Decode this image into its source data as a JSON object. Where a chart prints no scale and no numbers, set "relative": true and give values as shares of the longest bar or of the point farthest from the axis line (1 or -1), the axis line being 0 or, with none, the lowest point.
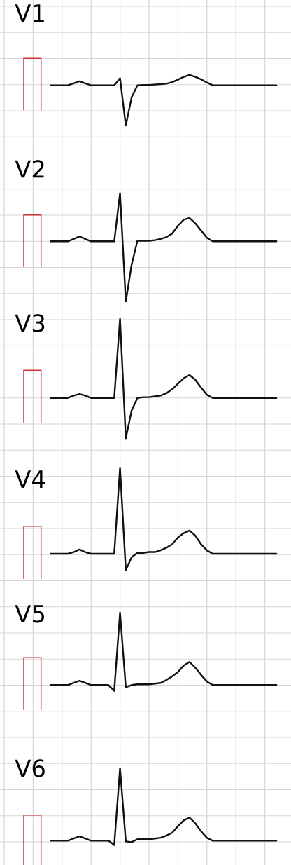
{
  "chart_data": [
    {
      "type": "line",
      "title": "V1",
      "relative": true,
      "grid": true,
      "color": "#111111",
      "categories": [
        null,
        null,
        null,
        null,
        null,
        null,
        null,
        null,
        null,
        null,
        null,
        null,
        null,
        null,
        null,
        null,
        null,
        null,
        null,
        null,
        null,
        null,
        null,
        null,
        null,
        null,
        null,
        null,
        null,
        null,
        null,
        null,
        null,
        null,
        null,
        null,
        null,
        null,
        null,
        null
      ],
      "values": [
        0,
        0,
        0,
        0,
        0.05,
        0.1,
        0.05,
        0,
        0,
        0,
        0,
        0,
        0.18,
        -1,
        -0.3,
        0,
        0.01,
        0.01,
        0.02,
        0.03,
        0.04,
        0.08,
        0.14,
        0.21,
        0.26,
        0.21,
        0.15,
        0.07,
        0,
        0,
        0,
        0,
        0,
        0,
        0,
        0,
        0,
        0,
        0,
        0
      ]
    },
    {
      "type": "line",
      "title": "V2",
      "relative": true,
      "grid": true,
      "color": "#111111",
      "categories": [
        null,
        null,
        null,
        null,
        null,
        null,
        null,
        null,
        null,
        null,
        null,
        null,
        null,
        null,
        null,
        null,
        null,
        null,
        null,
        null,
        null,
        null,
        null,
        null,
        null,
        null,
        null,
        null,
        null,
        null,
        null,
        null,
        null,
        null,
        null,
        null,
        null,
        null,
        null,
        null
      ],
      "values": [
        0,
        0,
        0,
        0,
        0.04,
        0.08,
        0.04,
        0,
        0,
        0,
        0,
        0,
        0.8,
        -1,
        -0.39,
        0.01,
        0.01,
        0.01,
        0.02,
        0.04,
        0.07,
        0.13,
        0.26,
        0.36,
        0.39,
        0.3,
        0.18,
        0.06,
        0,
        0,
        0,
        0,
        0,
        0,
        0,
        0,
        0,
        0,
        0,
        0
      ]
    },
    {
      "type": "line",
      "title": "V3",
      "relative": true,
      "grid": true,
      "color": "#111111",
      "categories": [
        null,
        null,
        null,
        null,
        null,
        null,
        null,
        null,
        null,
        null,
        null,
        null,
        null,
        null,
        null,
        null,
        null,
        null,
        null,
        null,
        null,
        null,
        null,
        null,
        null,
        null,
        null,
        null,
        null,
        null,
        null,
        null,
        null,
        null,
        null,
        null,
        null,
        null,
        null,
        null
      ],
      "values": [
        0,
        0,
        0,
        0,
        0.03,
        0.05,
        0.03,
        0,
        0,
        0,
        0,
        0,
        1,
        -0.51,
        -0.16,
        0,
        0.01,
        0.01,
        0.02,
        0.03,
        0.06,
        0.11,
        0.18,
        0.25,
        0.29,
        0.23,
        0.13,
        0.04,
        0,
        0,
        0,
        0,
        0,
        0,
        0,
        0,
        0,
        0,
        0,
        0
      ]
    },
    {
      "type": "line",
      "title": "V4",
      "relative": true,
      "grid": true,
      "color": "#111111",
      "categories": [
        null,
        null,
        null,
        null,
        null,
        null,
        null,
        null,
        null,
        null,
        null,
        null,
        null,
        null,
        null,
        null,
        null,
        null,
        null,
        null,
        null,
        null,
        null,
        null,
        null,
        null,
        null,
        null,
        null,
        null,
        null,
        null,
        null,
        null,
        null,
        null,
        null,
        null,
        null,
        null
      ],
      "values": [
        0,
        0,
        0,
        0,
        0.02,
        0.05,
        0.02,
        0,
        0,
        0,
        0,
        0,
        1,
        -0.19,
        -0.04,
        0.01,
        0.01,
        0.02,
        0.02,
        0.04,
        0.07,
        0.11,
        0.19,
        0.24,
        0.27,
        0.21,
        0.11,
        0.04,
        0,
        0,
        0,
        0,
        0,
        0,
        0,
        0,
        0,
        0,
        0,
        0
      ]
    },
    {
      "type": "line",
      "title": "V5",
      "relative": true,
      "grid": true,
      "color": "#111111",
      "categories": [
        null,
        null,
        null,
        null,
        null,
        null,
        null,
        null,
        null,
        null,
        null,
        null,
        null,
        null,
        null,
        null,
        null,
        null,
        null,
        null,
        null,
        null,
        null,
        null,
        null,
        null,
        null,
        null,
        null,
        null,
        null,
        null,
        null,
        null,
        null,
        null,
        null,
        null,
        null,
        null
      ],
      "values": [
        0,
        0,
        0,
        0,
        0.03,
        0.06,
        0.03,
        0,
        0,
        0,
        0,
        -0.08,
        1,
        -0.03,
        0,
        0.01,
        0.01,
        0.01,
        0.02,
        0.03,
        0.07,
        0.12,
        0.18,
        0.27,
        0.32,
        0.24,
        0.14,
        0.05,
        0,
        0,
        0,
        0,
        0,
        0,
        0,
        0,
        0,
        0,
        0,
        0
      ]
    },
    {
      "type": "line",
      "title": "V6",
      "relative": true,
      "grid": true,
      "color": "#111111",
      "categories": [
        null,
        null,
        null,
        null,
        null,
        null,
        null,
        null,
        null,
        null,
        null,
        null,
        null,
        null,
        null,
        null,
        null,
        null,
        null,
        null,
        null,
        null,
        null,
        null,
        null,
        null,
        null,
        null,
        null,
        null,
        null,
        null,
        null,
        null,
        null,
        null,
        null,
        null,
        null,
        null
      ],
      "values": [
        0,
        0,
        0,
        0,
        0.03,
        0.06,
        0.03,
        0,
        0,
        0,
        0,
        -0.06,
        1,
        -0.01,
        -0.02,
        0.02,
        0.02,
        0.02,
        0.03,
        0.04,
        0.07,
        0.11,
        0.2,
        0.28,
        0.32,
        0.24,
        0.13,
        0.04,
        0,
        0,
        0,
        0,
        0,
        0,
        0,
        0,
        0,
        0,
        0,
        0
      ]
    }
  ]
}
